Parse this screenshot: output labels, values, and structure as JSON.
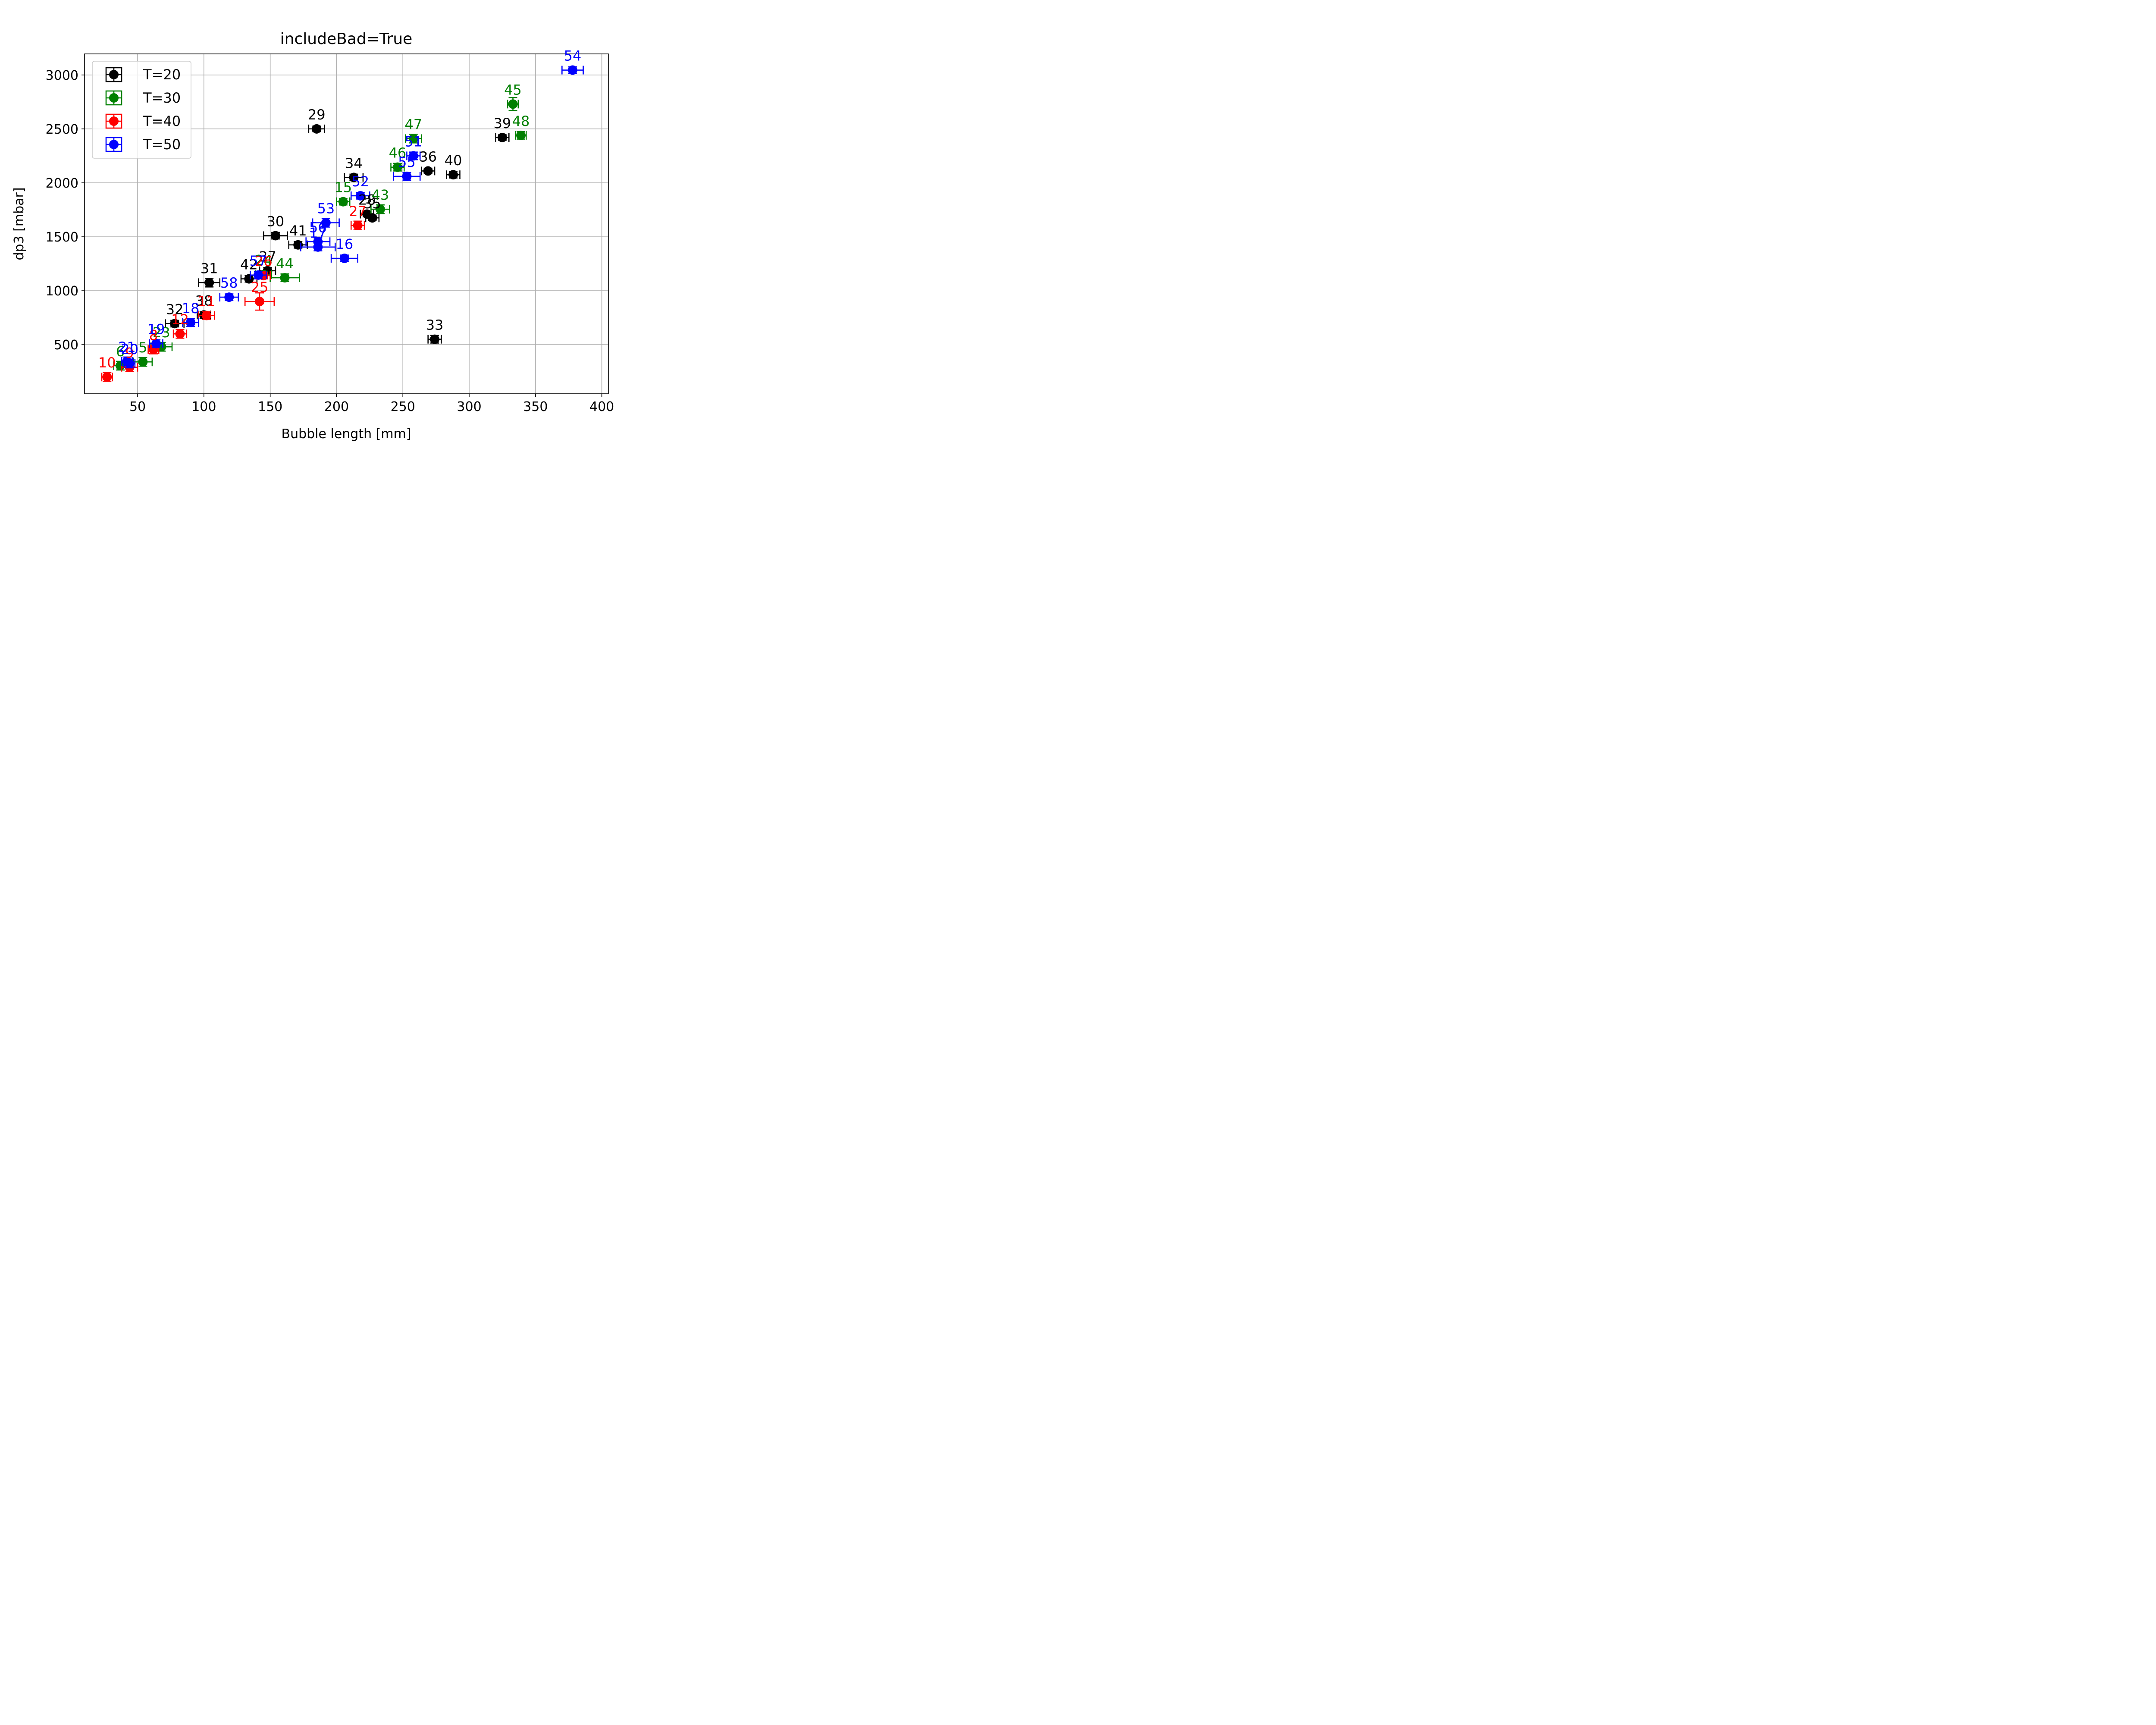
{
  "chart_data": {
    "type": "scatter",
    "title": "includeBad=True",
    "xlabel": "Bubble length [mm]",
    "ylabel": "dp3 [mbar]",
    "xlim": [
      10,
      405
    ],
    "ylim": [
      45,
      3195
    ],
    "xticks": [
      50,
      100,
      150,
      200,
      250,
      300,
      350,
      400
    ],
    "yticks": [
      500,
      1000,
      1500,
      2000,
      2500,
      3000
    ],
    "grid": true,
    "legend_position": "upper-left",
    "series": [
      {
        "name": "T=20",
        "color": "#000000",
        "points": [
          {
            "label": "29",
            "x": 185,
            "y": 2500,
            "xerr": 6,
            "yerr": 25
          },
          {
            "label": "34",
            "x": 213,
            "y": 2050,
            "xerr": 7,
            "yerr": 30
          },
          {
            "label": "36",
            "x": 269,
            "y": 2110,
            "xerr": 5,
            "yerr": 25
          },
          {
            "label": "40",
            "x": 288,
            "y": 2075,
            "xerr": 5,
            "yerr": 30
          },
          {
            "label": "39",
            "x": 325,
            "y": 2420,
            "xerr": 5,
            "yerr": 25
          },
          {
            "label": "30",
            "x": 154,
            "y": 1510,
            "xerr": 9,
            "yerr": 30
          },
          {
            "label": "41",
            "x": 171,
            "y": 1425,
            "xerr": 7,
            "yerr": 30
          },
          {
            "label": "28",
            "x": 223,
            "y": 1710,
            "xerr": 5,
            "yerr": 25
          },
          {
            "label": "35",
            "x": 227,
            "y": 1675,
            "xerr": 5,
            "yerr": 25
          },
          {
            "label": "37",
            "x": 148,
            "y": 1185,
            "xerr": 6,
            "yerr": 30
          },
          {
            "label": "42",
            "x": 134,
            "y": 1110,
            "xerr": 6,
            "yerr": 30
          },
          {
            "label": "31",
            "x": 104,
            "y": 1075,
            "xerr": 8,
            "yerr": 40
          },
          {
            "label": "38",
            "x": 100,
            "y": 775,
            "xerr": 5,
            "yerr": 30
          },
          {
            "label": "32",
            "x": 78,
            "y": 695,
            "xerr": 7,
            "yerr": 30
          },
          {
            "label": "33",
            "x": 274,
            "y": 550,
            "xerr": 5,
            "yerr": 35
          }
        ]
      },
      {
        "name": "T=30",
        "color": "#008000",
        "points": [
          {
            "label": "45",
            "x": 333,
            "y": 2730,
            "xerr": 4,
            "yerr": 60
          },
          {
            "label": "48",
            "x": 339,
            "y": 2440,
            "xerr": 4,
            "yerr": 35
          },
          {
            "label": "47",
            "x": 258,
            "y": 2410,
            "xerr": 6,
            "yerr": 40
          },
          {
            "label": "46",
            "x": 246,
            "y": 2145,
            "xerr": 5,
            "yerr": 35
          },
          {
            "label": "15",
            "x": 205,
            "y": 1825,
            "xerr": 5,
            "yerr": 30
          },
          {
            "label": "43",
            "x": 233,
            "y": 1755,
            "xerr": 7,
            "yerr": 40
          },
          {
            "label": "44",
            "x": 161,
            "y": 1120,
            "xerr": 11,
            "yerr": 35
          },
          {
            "label": "24",
            "x": 145,
            "y": 1150,
            "xerr": 6,
            "yerr": 30
          },
          {
            "label": "23",
            "x": 68,
            "y": 480,
            "xerr": 8,
            "yerr": 40
          },
          {
            "label": "5",
            "x": 54,
            "y": 340,
            "xerr": 7,
            "yerr": 40
          },
          {
            "label": "6",
            "x": 37,
            "y": 305,
            "xerr": 5,
            "yerr": 40
          }
        ]
      },
      {
        "name": "T=40",
        "color": "#ff0000",
        "points": [
          {
            "label": "27",
            "x": 216,
            "y": 1605,
            "xerr": 5,
            "yerr": 40
          },
          {
            "label": "26",
            "x": 145,
            "y": 1140,
            "xerr": 5,
            "yerr": 30
          },
          {
            "label": "25",
            "x": 142,
            "y": 900,
            "xerr": 11,
            "yerr": 80
          },
          {
            "label": "11",
            "x": 102,
            "y": 770,
            "xerr": 6,
            "yerr": 35
          },
          {
            "label": "12",
            "x": 82,
            "y": 600,
            "xerr": 5,
            "yerr": 40
          },
          {
            "label": "8",
            "x": 62,
            "y": 455,
            "xerr": 4,
            "yerr": 40
          },
          {
            "label": "9",
            "x": 44,
            "y": 290,
            "xerr": 6,
            "yerr": 40
          },
          {
            "label": "10",
            "x": 27,
            "y": 200,
            "xerr": 4,
            "yerr": 40
          }
        ]
      },
      {
        "name": "T=50",
        "color": "#0000ff",
        "points": [
          {
            "label": "54",
            "x": 378,
            "y": 3045,
            "xerr": 8,
            "yerr": 30
          },
          {
            "label": "51",
            "x": 258,
            "y": 2250,
            "xerr": 5,
            "yerr": 35
          },
          {
            "label": "55",
            "x": 253,
            "y": 2060,
            "xerr": 10,
            "yerr": 35
          },
          {
            "label": "52",
            "x": 218,
            "y": 1880,
            "xerr": 7,
            "yerr": 30
          },
          {
            "label": "53",
            "x": 192,
            "y": 1630,
            "xerr": 10,
            "yerr": 40
          },
          {
            "label": "56",
            "x": 186,
            "y": 1455,
            "xerr": 9,
            "yerr": 35
          },
          {
            "label": "17",
            "x": 186,
            "y": 1405,
            "xerr": 13,
            "yerr": 35
          },
          {
            "label": "16",
            "x": 206,
            "y": 1300,
            "xerr": 10,
            "yerr": 30
          },
          {
            "label": "57",
            "x": 141,
            "y": 1145,
            "xerr": 6,
            "yerr": 35
          },
          {
            "label": "58",
            "x": 119,
            "y": 940,
            "xerr": 7,
            "yerr": 30
          },
          {
            "label": "18",
            "x": 90,
            "y": 705,
            "xerr": 6,
            "yerr": 35
          },
          {
            "label": "19",
            "x": 64,
            "y": 510,
            "xerr": 5,
            "yerr": 35
          },
          {
            "label": "21",
            "x": 42,
            "y": 345,
            "xerr": 4,
            "yerr": 40
          },
          {
            "label": "20",
            "x": 44,
            "y": 325,
            "xerr": 4,
            "yerr": 40
          }
        ]
      }
    ]
  }
}
